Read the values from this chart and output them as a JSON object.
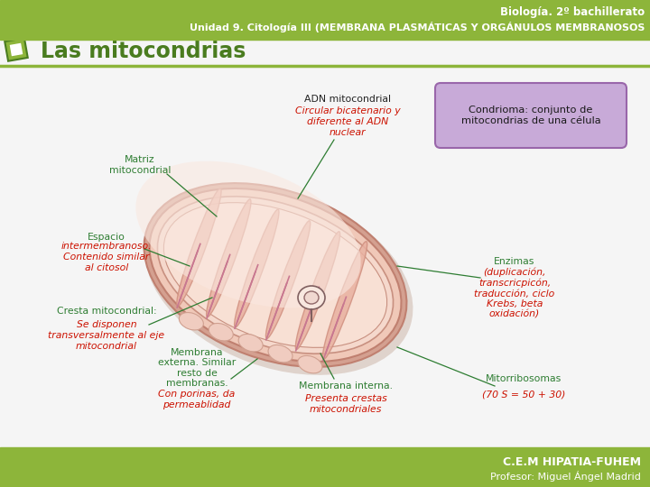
{
  "header_bg": "#8db53a",
  "header_text1": "Biología. 2º bachillerato",
  "header_text2": "Unidad 9. Citología III (MEMBRANA PLASMÁTICAS Y ORGÁNULOS MEMBRANOSOS",
  "footer_bg": "#8db53a",
  "footer_text1": "C.E.M HIPATIA-FUHEM",
  "footer_text2": "Profesor: Miguel Ángel Madrid",
  "title": "Las mitocondrias",
  "title_color": "#4a7c1f",
  "section_line_color": "#8db53a",
  "icon_color": "#8db53a",
  "icon_border": "#4a7c1f",
  "body_bg": "#f5f5f5",
  "condrioma_box_color": "#c8aad8",
  "condrioma_box_border": "#9966aa",
  "label_green": "#2e7d32",
  "label_red": "#cc1100",
  "label_dark": "#222222",
  "line_color": "#2e7d32",
  "mito_outer": "#d4a090",
  "mito_outer_edge": "#c08070",
  "mito_inner": "#ecc0b0",
  "mito_matrix": "#f5d8cc",
  "mito_cresta_fill": "#e8b0a0",
  "mito_cresta_edge": "#d09080",
  "labels": {
    "matriz": "Matriz\nmitocondrial",
    "adn_title": "ADN mitocondrial",
    "adn_body": "Circular bicatenario y\ndiferente al ADN\nnuclear",
    "condrioma": "Condrioma: conjunto de\nmitocondrias de una célula",
    "espacio_title": "Espacio",
    "espacio_body": "intermembranoso.\nContenido similar\nal citosol",
    "cresta_title": "Cresta mitocondrial:",
    "cresta_body": "Se disponen\ntransversalmente al eje\nmitocondrial",
    "membrana_ext_title": "Membrana\nexterna. Similar\nresto de\nmembranas.",
    "membrana_ext_body": "Con porinas, da\npermeablidad",
    "membrana_int_title": "Membrana interna.",
    "membrana_int_body": "Presenta crestas\nmitocondriales",
    "enzimas_title": "Enzimas",
    "enzimas_body": "(duplicación,\ntranscricpicón,\ntraducción, ciclo\nKrebs, beta\noxidación)",
    "mitorribosomas_title": "Mitorribosomas",
    "mitorribosomas_body": "(70 S = 50 + 30)"
  }
}
